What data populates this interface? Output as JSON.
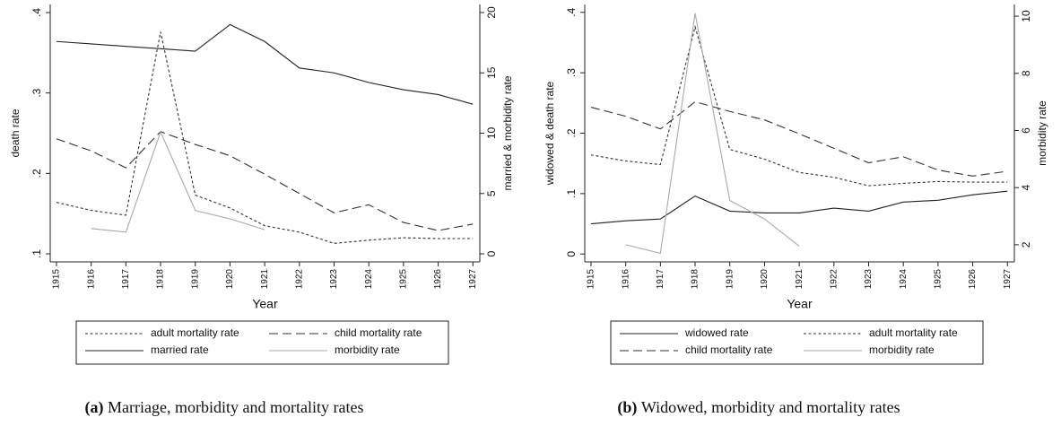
{
  "chart_data": [
    {
      "type": "line",
      "y_label": "death rate",
      "y2_label": "married & morbidity rate",
      "x_label": "Year",
      "caption": {
        "label": "(a)",
        "text": "Marriage, morbidity and mortality rates"
      },
      "x": [
        1915,
        1916,
        1917,
        1918,
        1919,
        1920,
        1921,
        1922,
        1923,
        1924,
        1925,
        1926,
        1927
      ],
      "xlim": [
        1914.82,
        1927.2
      ],
      "xticks": [
        1915,
        1916,
        1917,
        1918,
        1919,
        1920,
        1921,
        1922,
        1923,
        1924,
        1925,
        1926,
        1927
      ],
      "ylim": [
        0.09,
        0.41
      ],
      "yticks": [
        {
          "value": 0.1,
          "label": ".1"
        },
        {
          "value": 0.2,
          "label": ".2"
        },
        {
          "value": 0.3,
          "label": ".3"
        },
        {
          "value": 0.4,
          "label": ".4"
        }
      ],
      "y2lim": [
        -0.667,
        20.667
      ],
      "y2ticks": [
        0,
        5,
        10,
        15,
        20
      ],
      "series": [
        {
          "name": "adult mortality rate",
          "color": "#333333",
          "style": "dotted",
          "axis": "y",
          "values": [
            0.164,
            0.154,
            0.148,
            0.376,
            0.173,
            0.157,
            0.135,
            0.127,
            0.113,
            0.117,
            0.12,
            0.119,
            0.119
          ]
        },
        {
          "name": "child mortality rate",
          "color": "#333333",
          "style": "dashed",
          "axis": "y",
          "values": [
            0.243,
            0.228,
            0.207,
            0.252,
            0.236,
            0.222,
            0.199,
            0.175,
            0.151,
            0.161,
            0.139,
            0.129,
            0.137
          ]
        },
        {
          "name": "married rate",
          "color": "#222222",
          "style": "solid",
          "axis": "y2",
          "values": [
            17.6,
            17.4,
            17.2,
            17.0,
            16.8,
            19.0,
            17.6,
            15.4,
            15.0,
            14.2,
            13.6,
            13.2,
            12.4
          ]
        },
        {
          "name": "morbidity rate",
          "color": "#aaaaaa",
          "style": "solid",
          "axis": "y2",
          "values": [
            null,
            2.1,
            1.8,
            10.1,
            3.6,
            2.9,
            2.0,
            null,
            null,
            null,
            null,
            null,
            null
          ]
        }
      ]
    },
    {
      "type": "line",
      "y_label": "widowed & death rate",
      "y2_label": "morbidity rate",
      "x_label": "Year",
      "caption": {
        "label": "(b)",
        "text": "Widowed, morbidity and mortality rates"
      },
      "x": [
        1915,
        1916,
        1917,
        1918,
        1919,
        1920,
        1921,
        1922,
        1923,
        1924,
        1925,
        1926,
        1927
      ],
      "xlim": [
        1914.82,
        1927.2
      ],
      "xticks": [
        1915,
        1916,
        1917,
        1918,
        1919,
        1920,
        1921,
        1922,
        1923,
        1924,
        1925,
        1926,
        1927
      ],
      "ylim": [
        -0.013,
        0.413
      ],
      "yticks": [
        0,
        {
          "value": 0.1,
          "label": ".1"
        },
        {
          "value": 0.2,
          "label": ".2"
        },
        {
          "value": 0.3,
          "label": ".3"
        },
        {
          "value": 0.4,
          "label": ".4"
        }
      ],
      "y2lim": [
        1.4,
        10.41
      ],
      "y2ticks": [
        2,
        4,
        6,
        8,
        10
      ],
      "series": [
        {
          "name": "widowed rate",
          "color": "#222222",
          "style": "solid",
          "axis": "y",
          "values": [
            0.05,
            0.055,
            0.058,
            0.096,
            0.071,
            0.068,
            0.068,
            0.076,
            0.071,
            0.086,
            0.089,
            0.098,
            0.104
          ]
        },
        {
          "name": "adult mortality rate",
          "color": "#333333",
          "style": "dotted",
          "axis": "y",
          "values": [
            0.164,
            0.154,
            0.148,
            0.376,
            0.173,
            0.157,
            0.135,
            0.127,
            0.113,
            0.117,
            0.12,
            0.119,
            0.119
          ]
        },
        {
          "name": "child mortality rate",
          "color": "#333333",
          "style": "dashed",
          "axis": "y",
          "values": [
            0.243,
            0.228,
            0.207,
            0.252,
            0.236,
            0.222,
            0.199,
            0.175,
            0.151,
            0.161,
            0.139,
            0.129,
            0.137
          ]
        },
        {
          "name": "morbidity rate",
          "color": "#aaaaaa",
          "style": "solid",
          "axis": "y2",
          "values": [
            null,
            2.0,
            1.7,
            10.1,
            3.55,
            2.9,
            1.95,
            null,
            null,
            null,
            null,
            null,
            null
          ]
        }
      ]
    }
  ]
}
